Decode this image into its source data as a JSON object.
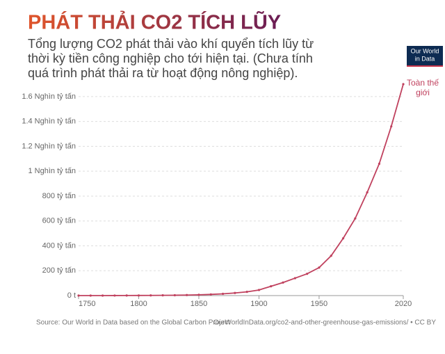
{
  "chart_data": {
    "type": "line",
    "title": "PHÁT THẢI CO2 TÍCH LŨY",
    "subtitle": [
      "Tổng lượng CO2 phát thải vào khí quyển tích lũy từ",
      "thời kỳ tiền công nghiệp cho tới hiện tại. (Chưa tính",
      "quá trình phát thải ra từ hoạt động nông nghiệp)."
    ],
    "logo": [
      "Our World",
      "in Data"
    ],
    "source": "Source: Our World in Data based on the Global Carbon Project",
    "url": "OurWorldInData.org/co2-and-other-greenhouse-gas-emissions/ • CC BY",
    "x": [
      1750,
      1760,
      1770,
      1780,
      1790,
      1800,
      1810,
      1820,
      1830,
      1840,
      1850,
      1860,
      1870,
      1880,
      1890,
      1900,
      1910,
      1920,
      1930,
      1940,
      1950,
      1960,
      1970,
      1980,
      1990,
      2000,
      2010,
      2020
    ],
    "series": [
      {
        "name": "Toàn thế giới",
        "color": "#c0415e",
        "values": [
          0.01,
          0.1,
          0.2,
          0.4,
          0.7,
          1.0,
          1.5,
          2.1,
          3.0,
          4.3,
          6.4,
          9.5,
          14,
          21,
          30,
          45,
          75,
          105,
          140,
          175,
          225,
          320,
          460,
          620,
          830,
          1060,
          1360,
          1700
        ]
      }
    ],
    "xlim": [
      1750,
      2020
    ],
    "xticks": [
      1750,
      1800,
      1850,
      1900,
      1950,
      2020
    ],
    "ylim": [
      0,
      1700
    ],
    "yticks": [
      {
        "value": 0,
        "label": "0 t"
      },
      {
        "value": 200,
        "label": "200 tỷ tấn"
      },
      {
        "value": 400,
        "label": "400 tỷ tấn"
      },
      {
        "value": 600,
        "label": "600 tỷ tấn"
      },
      {
        "value": 800,
        "label": "800 tỷ tấn"
      },
      {
        "value": 1000,
        "label": "1 Nghìn tỷ tấn"
      },
      {
        "value": 1200,
        "label": "1.2 Nghìn tỷ tấn"
      },
      {
        "value": 1400,
        "label": "1.4 Nghìn tỷ tấn"
      },
      {
        "value": 1600,
        "label": "1.6 Nghìn tỷ tấn"
      }
    ],
    "grid": true
  }
}
